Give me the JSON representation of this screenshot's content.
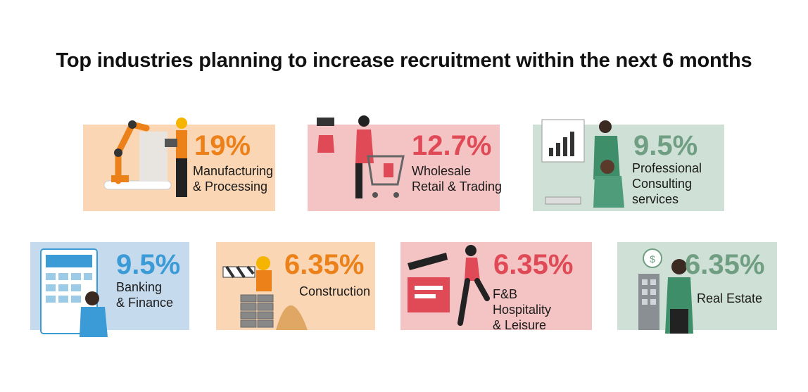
{
  "chart_data": {
    "type": "table",
    "title": "Top industries planning to increase recruitment within the next 6 months",
    "categories": [
      [
        "Manufacturing",
        "& Processing"
      ],
      [
        "Wholesale",
        "Retail & Trading"
      ],
      [
        "Professional",
        "Consulting",
        "services"
      ],
      [
        "Banking",
        "& Finance"
      ],
      [
        "Construction"
      ],
      [
        "F&B",
        "Hospitality",
        "& Leisure"
      ],
      [
        "Real Estate"
      ]
    ],
    "value_labels": [
      "19%",
      "12.7%",
      "9.5%",
      "9.5%",
      "6.35%",
      "6.35%",
      "6.35%"
    ],
    "values": [
      19,
      12.7,
      9.5,
      9.5,
      6.35,
      6.35,
      6.35
    ],
    "unit": "%"
  },
  "colors": {
    "cards": [
      "#fad6b5",
      "#f4c3c3",
      "#cfe0d6",
      "#c6daee",
      "#fad6b5",
      "#f4c3c3",
      "#cfe0d6"
    ],
    "accents": [
      "#ec8119",
      "#e04a56",
      "#6f9e82",
      "#3a9bd6",
      "#ec8119",
      "#e04a56",
      "#6f9e82"
    ]
  },
  "icons": [
    "robot-arm-engineer-illustration",
    "shopping-cart-woman-illustration",
    "presentation-consultants-illustration",
    "calculator-banker-illustration",
    "construction-worker-bricks-illustration",
    "clapperboard-dancer-illustration",
    "realtor-building-illustration"
  ]
}
